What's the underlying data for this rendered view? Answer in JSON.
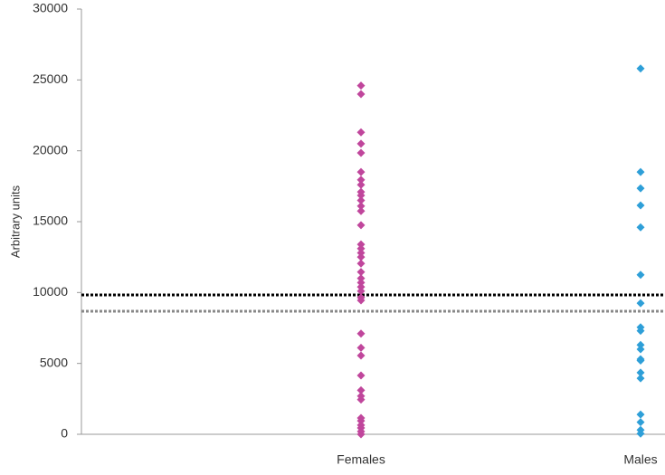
{
  "chart_data": {
    "type": "strip",
    "y_label": "Arbitrary units",
    "categories": [
      "Females",
      "Males"
    ],
    "series": [
      {
        "color": "#c0469c",
        "values": [
          24600,
          24000,
          21300,
          20500,
          19850,
          18500,
          17950,
          17600,
          17100,
          16850,
          16500,
          16100,
          15750,
          14750,
          13400,
          13100,
          12800,
          12500,
          12050,
          11450,
          11000,
          10700,
          10400,
          10100,
          9650,
          9450,
          7100,
          6100,
          5550,
          4150,
          3100,
          2700,
          2450,
          1150,
          950,
          650,
          450,
          200,
          0
        ]
      },
      {
        "color": "#2e9fd8",
        "values": [
          25800,
          18500,
          17350,
          16150,
          14600,
          11250,
          9250,
          7550,
          7300,
          6300,
          6000,
          5300,
          5200,
          4350,
          3950,
          1400,
          850,
          300,
          50
        ]
      }
    ],
    "reference_lines": [
      {
        "value": 9830,
        "color": "#000000"
      },
      {
        "value": 8680,
        "color": "#888888"
      }
    ],
    "ylim": [
      0,
      30000
    ],
    "yticks": [
      0,
      5000,
      10000,
      15000,
      20000,
      25000,
      30000
    ]
  }
}
